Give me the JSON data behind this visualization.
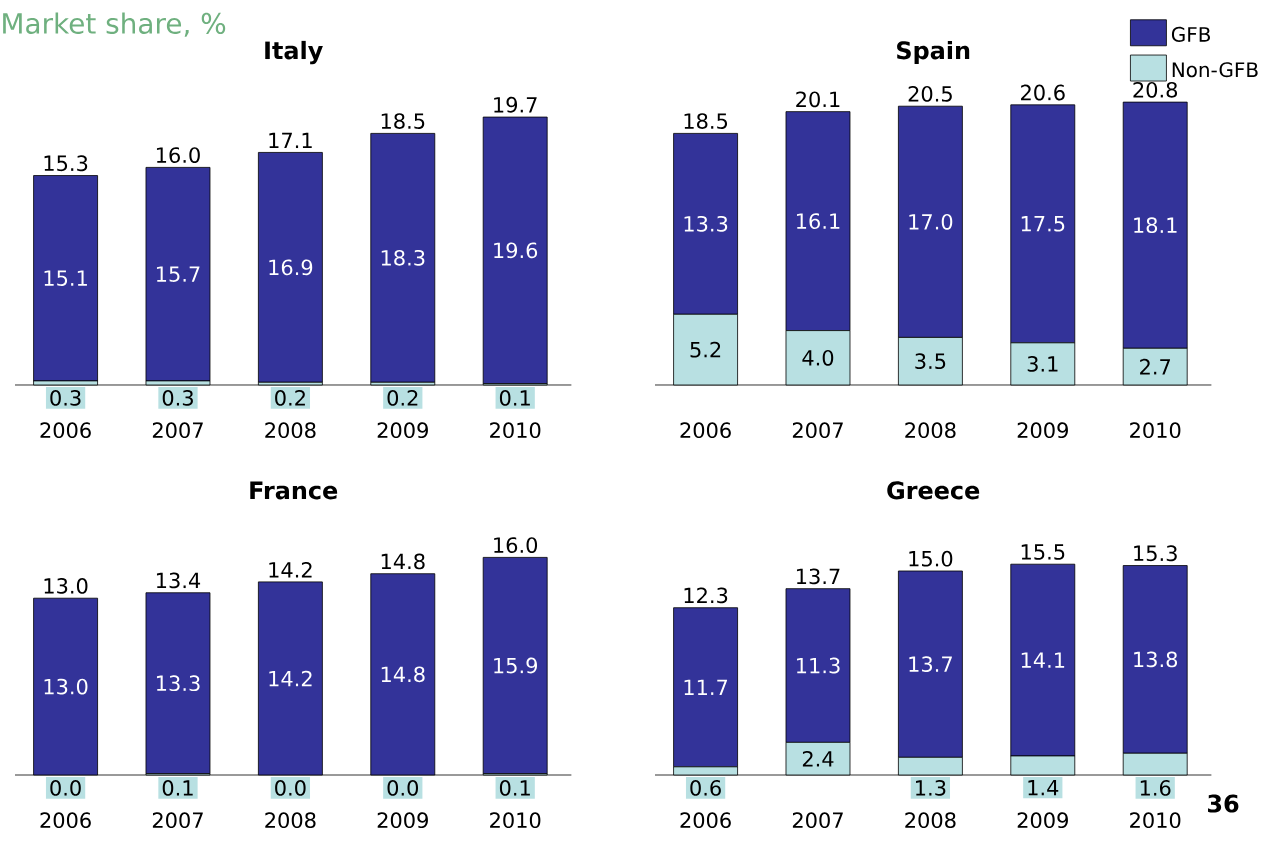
{
  "chart_data": [
    {
      "type": "bar",
      "stacked": true,
      "title": "Italy",
      "annotations": [
        "Market share, %"
      ],
      "categories": [
        "2006",
        "2007",
        "2008",
        "2009",
        "2010"
      ],
      "series": [
        {
          "color": "#b8e0e2",
          "values": [
            0.3,
            0.3,
            0.2,
            0.2,
            0.1
          ],
          "value_labels": [
            "0.3",
            "0.3",
            "0.2",
            "0.2",
            "0.1"
          ]
        },
        {
          "color": "#333399",
          "values": [
            15.1,
            15.7,
            16.9,
            18.3,
            19.6
          ],
          "value_labels": [
            "15.1",
            "15.7",
            "16.9",
            "18.3",
            "19.6"
          ]
        }
      ],
      "totals": [
        "15.3",
        "16.0",
        "17.1",
        "18.5",
        "19.7"
      ]
    },
    {
      "type": "bar",
      "stacked": true,
      "title": "Spain",
      "legend": "top right",
      "categories": [
        "2006",
        "2007",
        "2008",
        "2009",
        "2010"
      ],
      "series": [
        {
          "name": "Non-GFB",
          "color": "#b8e0e2",
          "values": [
            5.2,
            4.0,
            3.5,
            3.1,
            2.7
          ],
          "value_labels": [
            "5.2",
            "4.0",
            "3.5",
            "3.1",
            "2.7"
          ]
        },
        {
          "name": "GFB",
          "color": "#333399",
          "values": [
            13.3,
            16.1,
            17.0,
            17.5,
            18.1
          ],
          "value_labels": [
            "13.3",
            "16.1",
            "17.0",
            "17.5",
            "18.1"
          ]
        }
      ],
      "totals": [
        "18.5",
        "20.1",
        "20.5",
        "20.6",
        "20.8"
      ]
    },
    {
      "type": "bar",
      "stacked": true,
      "title": "France",
      "categories": [
        "2006",
        "2007",
        "2008",
        "2009",
        "2010"
      ],
      "series": [
        {
          "color": "#b8e0e2",
          "values": [
            0.0,
            0.1,
            0.0,
            0.0,
            0.1
          ],
          "value_labels": [
            "0.0",
            "0.1",
            "0.0",
            "0.0",
            "0.1"
          ]
        },
        {
          "color": "#333399",
          "values": [
            13.0,
            13.3,
            14.2,
            14.8,
            15.9
          ],
          "value_labels": [
            "13.0",
            "13.3",
            "14.2",
            "14.8",
            "15.9"
          ]
        }
      ],
      "totals": [
        "13.0",
        "13.4",
        "14.2",
        "14.8",
        "16.0"
      ]
    },
    {
      "type": "bar",
      "stacked": true,
      "title": "Greece",
      "annotations": [
        "36"
      ],
      "categories": [
        "2006",
        "2007",
        "2008",
        "2009",
        "2010"
      ],
      "series": [
        {
          "color": "#b8e0e2",
          "values": [
            0.6,
            2.4,
            1.3,
            1.4,
            1.6
          ],
          "value_labels": [
            "0.6",
            "2.4",
            "1.3",
            "1.4",
            "1.6"
          ]
        },
        {
          "color": "#333399",
          "values": [
            11.7,
            11.3,
            13.7,
            14.1,
            13.8
          ],
          "value_labels": [
            "11.7",
            "11.3",
            "13.7",
            "14.1",
            "13.8"
          ]
        }
      ],
      "totals": [
        "12.3",
        "13.7",
        "15.0",
        "15.5",
        "15.3"
      ]
    }
  ]
}
